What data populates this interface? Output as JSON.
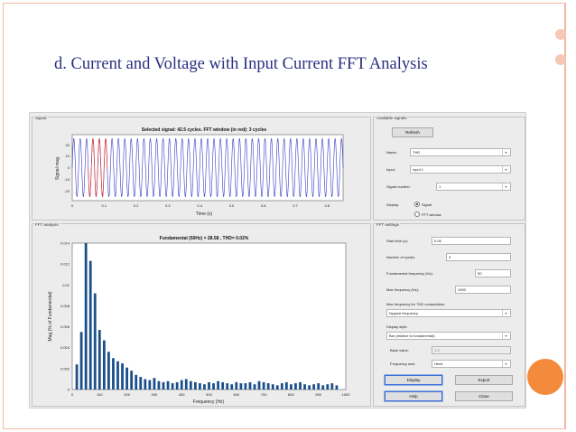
{
  "slide": {
    "title": "d. Current and Voltage with Input Current FFT Analysis"
  },
  "colors": {
    "accent_orange": "#f48a3c",
    "border_peach": "#f2b8a2",
    "title_blue": "#2b2f80",
    "signal_blue": "#3a3ac8",
    "fft_window_red": "#e03a3a",
    "bar_blue": "#1a4f8a"
  },
  "signal_panel": {
    "label": "Signal",
    "plot_title": "Selected signal: 42.5 cycles. FFT window (in red): 3 cycles",
    "ylabel": "Signal mag.",
    "xlabel": "Time (s)",
    "yticks": [
      "20",
      "10",
      "0",
      "-10",
      "-20"
    ],
    "xticks": [
      "0",
      "0.1",
      "0.2",
      "0.3",
      "0.4",
      "0.5",
      "0.6",
      "0.7",
      "0.8"
    ]
  },
  "fft_panel": {
    "label": "FFT analysis"
  },
  "chart_data": {
    "type": "bar",
    "title": "Fundamental (50Hz) = 28.58 , THD= 0.02%",
    "xlabel": "Frequency (Hz)",
    "ylabel": "Mag (% of Fundamental)",
    "xlim": [
      0,
      1000
    ],
    "ylim": [
      0,
      0.014
    ],
    "xticks": [
      "0",
      "100",
      "200",
      "300",
      "400",
      "500",
      "600",
      "700",
      "800",
      "900",
      "1000"
    ],
    "yticks": [
      "0.014",
      "0.012",
      "0.01",
      "0.008",
      "0.006",
      "0.004",
      "0.002",
      "0"
    ],
    "frequencies": [
      16.7,
      33.3,
      50,
      66.7,
      83.3,
      100,
      116.7,
      133.3,
      150,
      166.7,
      183.3,
      200,
      216.7,
      233.3,
      250,
      266.7,
      283.3,
      300,
      316.7,
      333.3,
      350,
      366.7,
      383.3,
      400,
      416.7,
      433.3,
      450,
      466.7,
      483.3,
      500,
      516.7,
      533.3,
      550,
      566.7,
      583.3,
      600,
      616.7,
      633.3,
      650,
      666.7,
      683.3,
      700,
      716.7,
      733.3,
      750,
      766.7,
      783.3,
      800,
      816.7,
      833.3,
      850,
      866.7,
      883.3,
      900,
      916.7,
      933.3,
      950,
      966.7
    ],
    "values": [
      0.0024,
      0.0055,
      0.014,
      0.0123,
      0.0092,
      0.0057,
      0.0047,
      0.0036,
      0.003,
      0.0027,
      0.0025,
      0.0021,
      0.0018,
      0.0014,
      0.0012,
      0.001,
      0.0009,
      0.0011,
      0.0008,
      0.0007,
      0.0008,
      0.0006,
      0.0007,
      0.0009,
      0.001,
      0.0008,
      0.0007,
      0.0006,
      0.0005,
      0.0007,
      0.0006,
      0.0008,
      0.0007,
      0.0006,
      0.0005,
      0.0007,
      0.0006,
      0.0006,
      0.0007,
      0.0005,
      0.0008,
      0.0007,
      0.0006,
      0.0005,
      0.0004,
      0.0006,
      0.0007,
      0.0005,
      0.0006,
      0.0007,
      0.0005,
      0.0004,
      0.0005,
      0.0006,
      0.0004,
      0.0005,
      0.0006,
      0.0004
    ]
  },
  "available_signals": {
    "label": "Available signals",
    "refresh": "Refresh",
    "name_label": "Name:",
    "name_value": "THD",
    "input_label": "Input:",
    "input_value": "input 1",
    "signal_number_label": "Signal number:",
    "signal_number_value": "1",
    "display_label": "Display:",
    "radio_signal": "Signal",
    "radio_fft_window": "FFT window"
  },
  "fft_settings": {
    "label": "FFT settings",
    "start_time_label": "Start time (s):",
    "start_time_value": "0.05",
    "cycles_label": "Number of cycles:",
    "cycles_value": "3",
    "fund_freq_label": "Fundamental frequency (Hz):",
    "fund_freq_value": "50",
    "max_freq_label": "Max frequency (Hz):",
    "max_freq_value": "1000",
    "max_freq_thd_label": "Max frequency for THD computation:",
    "max_freq_thd_value": "Nyquist frequency",
    "display_style_label": "Display style:",
    "display_style_value": "Bar (relative to fundamental)",
    "base_value_label": "Base value:",
    "base_value_value": "1.0",
    "freq_axis_label": "Frequency axis:",
    "freq_axis_value": "Hertz",
    "display_btn": "Display",
    "export_btn": "Export",
    "help_btn": "Help",
    "close_btn": "Close"
  }
}
